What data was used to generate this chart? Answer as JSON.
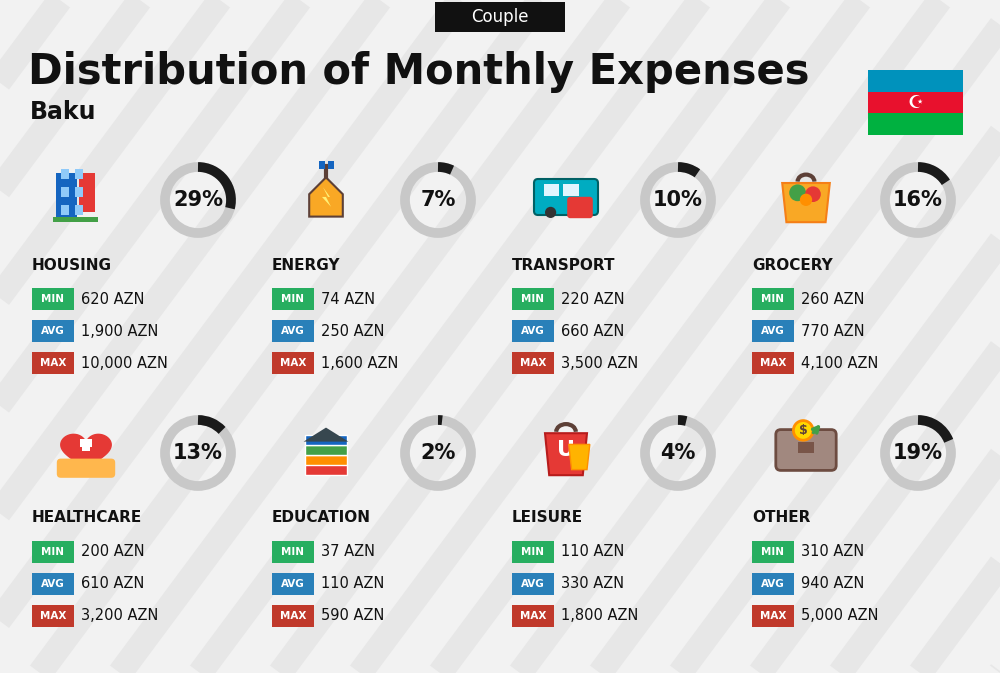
{
  "title": "Distribution of Monthly Expenses",
  "subtitle": "Couple",
  "location": "Baku",
  "bg_color": "#f2f2f2",
  "categories": [
    {
      "name": "HOUSING",
      "pct": 29,
      "min_val": "620 AZN",
      "avg_val": "1,900 AZN",
      "max_val": "10,000 AZN",
      "row": 0,
      "col": 0
    },
    {
      "name": "ENERGY",
      "pct": 7,
      "min_val": "74 AZN",
      "avg_val": "250 AZN",
      "max_val": "1,600 AZN",
      "row": 0,
      "col": 1
    },
    {
      "name": "TRANSPORT",
      "pct": 10,
      "min_val": "220 AZN",
      "avg_val": "660 AZN",
      "max_val": "3,500 AZN",
      "row": 0,
      "col": 2
    },
    {
      "name": "GROCERY",
      "pct": 16,
      "min_val": "260 AZN",
      "avg_val": "770 AZN",
      "max_val": "4,100 AZN",
      "row": 0,
      "col": 3
    },
    {
      "name": "HEALTHCARE",
      "pct": 13,
      "min_val": "200 AZN",
      "avg_val": "610 AZN",
      "max_val": "3,200 AZN",
      "row": 1,
      "col": 0
    },
    {
      "name": "EDUCATION",
      "pct": 2,
      "min_val": "37 AZN",
      "avg_val": "110 AZN",
      "max_val": "590 AZN",
      "row": 1,
      "col": 1
    },
    {
      "name": "LEISURE",
      "pct": 4,
      "min_val": "110 AZN",
      "avg_val": "330 AZN",
      "max_val": "1,800 AZN",
      "row": 1,
      "col": 2
    },
    {
      "name": "OTHER",
      "pct": 19,
      "min_val": "310 AZN",
      "avg_val": "940 AZN",
      "max_val": "5,000 AZN",
      "row": 1,
      "col": 3
    }
  ],
  "min_color": "#27ae60",
  "avg_color": "#2980b9",
  "max_color": "#c0392b",
  "donut_dark": "#1a1a1a",
  "donut_light": "#c8c8c8",
  "text_color": "#111111",
  "stripe_color": "#e0e0e0",
  "couple_bg": "#111111",
  "couple_fg": "#ffffff",
  "flag_blue": "#0092BC",
  "flag_red": "#E8112d",
  "flag_green": "#00B140"
}
